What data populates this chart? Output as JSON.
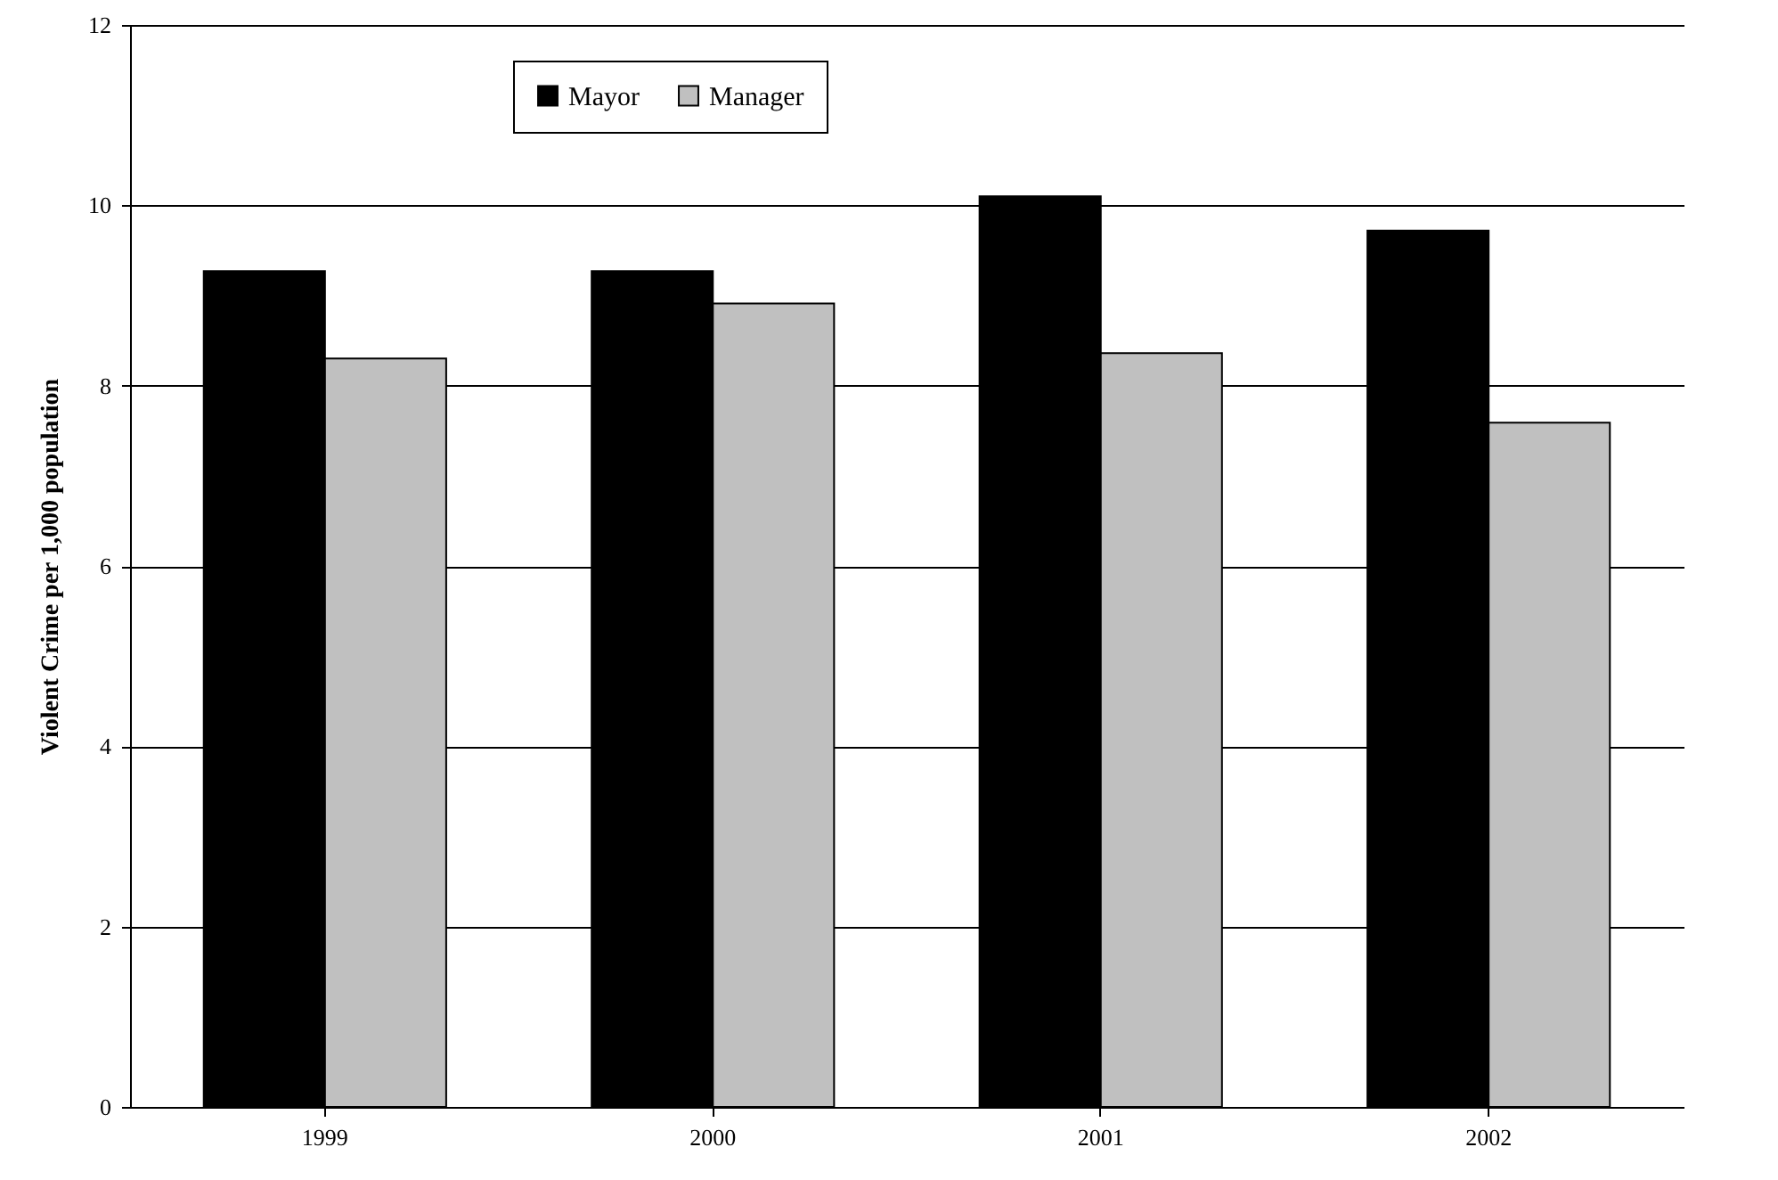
{
  "chart_data": {
    "type": "bar",
    "ylabel": "Violent Crime per 1,000 population",
    "categories": [
      "1999",
      "2000",
      "2001",
      "2002"
    ],
    "series": [
      {
        "name": "Mayor",
        "color": "#000000",
        "values": [
          9.27,
          9.27,
          10.1,
          9.72
        ]
      },
      {
        "name": "Manager",
        "color": "#c0c0c0",
        "values": [
          8.3,
          8.91,
          8.36,
          7.59
        ]
      }
    ],
    "ylim": [
      0,
      12
    ],
    "yticks": [
      0,
      2,
      4,
      6,
      8,
      10,
      12
    ],
    "grid": "y",
    "legend": "top"
  }
}
